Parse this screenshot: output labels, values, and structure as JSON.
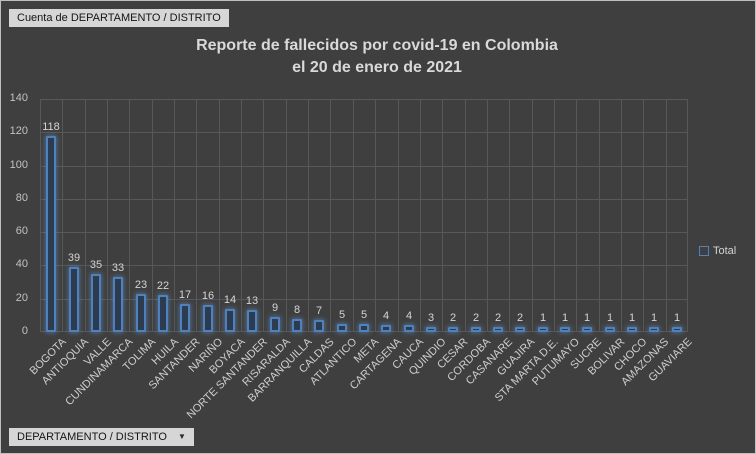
{
  "pivot_buttons": {
    "top_label": "Cuenta de DEPARTAMENTO / DISTRITO",
    "bottom_label": "DEPARTAMENTO / DISTRITO",
    "dropdown_icon": "▼"
  },
  "chart_data": {
    "type": "bar",
    "title_line1": "Reporte de fallecidos por covid-19 en Colombia",
    "title_line2": "el 20 de enero de 2021",
    "series_name": "Total",
    "categories": [
      "BOGOTA",
      "ANTIOQUIA",
      "VALLE",
      "CUNDINAMARCA",
      "TOLIMA",
      "HUILA",
      "SANTANDER",
      "NARIÑO",
      "BOYACA",
      "NORTE SANTANDER",
      "RISARALDA",
      "BARRANQUILLA",
      "CALDAS",
      "ATLANTICO",
      "META",
      "CARTAGENA",
      "CAUCA",
      "QUINDIO",
      "CESAR",
      "CORDOBA",
      "CASANARE",
      "GUAJIRA",
      "STA MARTA D.E.",
      "PUTUMAYO",
      "SUCRE",
      "BOLIVAR",
      "CHOCO",
      "AMAZONAS",
      "GUAVIARE"
    ],
    "values": [
      118,
      39,
      35,
      33,
      23,
      22,
      17,
      16,
      14,
      13,
      9,
      8,
      7,
      5,
      5,
      4,
      4,
      3,
      2,
      2,
      2,
      2,
      1,
      1,
      1,
      1,
      1,
      1,
      1
    ],
    "ylim": [
      0,
      140
    ],
    "yticks": [
      0,
      20,
      40,
      60,
      80,
      100,
      120,
      140
    ],
    "grid": true,
    "legend_position": "right",
    "colors": {
      "background": "#3f3f3f",
      "grid": "#585858",
      "bar_border": "#4f81bd",
      "bar_fill": "#2c3b50",
      "bar_glow": "rgba(95,150,210,0.5)",
      "text": "#d4d4d4"
    }
  }
}
